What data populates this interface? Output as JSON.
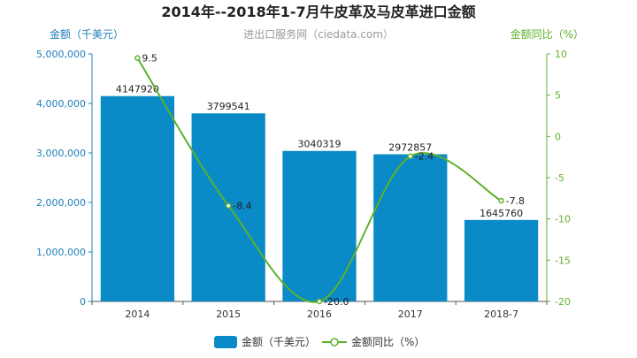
{
  "title": "2014年--2018年1-7月牛皮革及马皮革进口金额",
  "subtitle": "进出口服务网（ciedata.com）",
  "colors": {
    "bar": "#0b8ac8",
    "line": "#5cb22a",
    "left_axis": "#1f7fb8",
    "right_axis": "#5cb22a"
  },
  "chart_data": {
    "type": "bar",
    "categories": [
      "2014",
      "2015",
      "2016",
      "2017",
      "2018-7"
    ],
    "series": [
      {
        "name": "金额（千美元）",
        "type": "bar",
        "axis": "left",
        "values": [
          4147920,
          3799541,
          3040319,
          2972857,
          1645760
        ],
        "labels": [
          "4147920",
          "3799541",
          "3040319",
          "2972857",
          "1645760"
        ]
      },
      {
        "name": "金额同比（%）",
        "type": "line",
        "axis": "right",
        "values": [
          9.5,
          -8.4,
          -20.0,
          -2.4,
          -7.8
        ],
        "labels": [
          "9.5",
          "-8.4",
          "-20.0",
          "-2.4",
          "-7.8"
        ]
      }
    ],
    "ylabel_left": "金额（千美元）",
    "ylabel_right": "金额同比（%）",
    "ylim_left": [
      0,
      5000000
    ],
    "yticks_left": [
      "0",
      "1,000,000",
      "2,000,000",
      "3,000,000",
      "4,000,000",
      "5,000,000"
    ],
    "ylim_right": [
      -20,
      10
    ],
    "yticks_right": [
      "-20",
      "-15",
      "-10",
      "-5",
      "0",
      "5",
      "10"
    ],
    "grid": false,
    "legend_position": "bottom"
  }
}
